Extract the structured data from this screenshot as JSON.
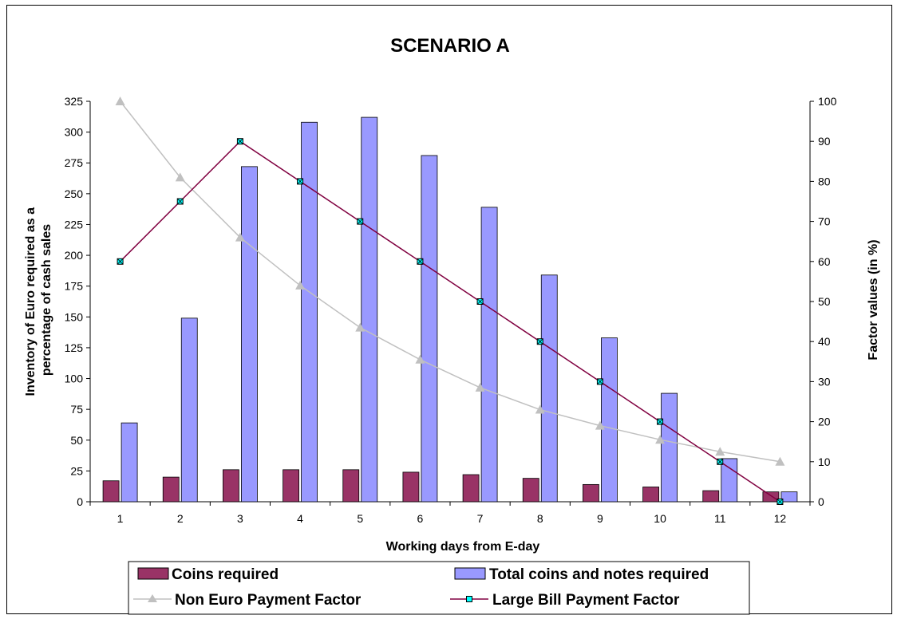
{
  "chart_data": {
    "type": "bar",
    "title": "SCENARIO A",
    "xlabel": "Working days from E-day",
    "ylabel": "Inventory of Euro required as a percentage of cash sales",
    "ylabel_lines": [
      "Inventory of Euro required as a",
      "percentage of cash sales"
    ],
    "y2label": "Factor values (in %)",
    "ylim": [
      0,
      325
    ],
    "yticks": [
      0,
      25,
      50,
      75,
      100,
      125,
      150,
      175,
      200,
      225,
      250,
      275,
      300,
      325
    ],
    "y2lim": [
      0,
      100
    ],
    "y2ticks": [
      0,
      10,
      20,
      30,
      40,
      50,
      60,
      70,
      80,
      90,
      100
    ],
    "categories": [
      "1",
      "2",
      "3",
      "4",
      "5",
      "6",
      "7",
      "8",
      "9",
      "10",
      "11",
      "12"
    ],
    "grid": false,
    "legend_position": "bottom",
    "series": [
      {
        "name": "Coins required",
        "kind": "bar",
        "axis": "left",
        "color": "#993366",
        "values": [
          17,
          20,
          26,
          26,
          26,
          24,
          22,
          19,
          14,
          12,
          9,
          8
        ]
      },
      {
        "name": "Total coins and notes required",
        "kind": "bar",
        "axis": "left",
        "color": "#9999ff",
        "values": [
          64,
          149,
          272,
          308,
          312,
          281,
          239,
          184,
          133,
          88,
          35,
          8
        ]
      },
      {
        "name": "Non Euro Payment Factor",
        "kind": "line",
        "axis": "right",
        "color": "#c0c0c0",
        "marker": "triangle",
        "values": [
          100,
          81,
          66,
          54,
          43.5,
          35.5,
          28.5,
          23,
          19,
          15.5,
          12.5,
          10
        ]
      },
      {
        "name": "Large Bill Payment Factor",
        "kind": "line",
        "axis": "right",
        "color": "#800040",
        "marker": "square-x",
        "values": [
          60,
          75,
          90,
          80,
          70,
          60,
          50,
          40,
          30,
          20,
          10,
          0
        ]
      }
    ]
  }
}
